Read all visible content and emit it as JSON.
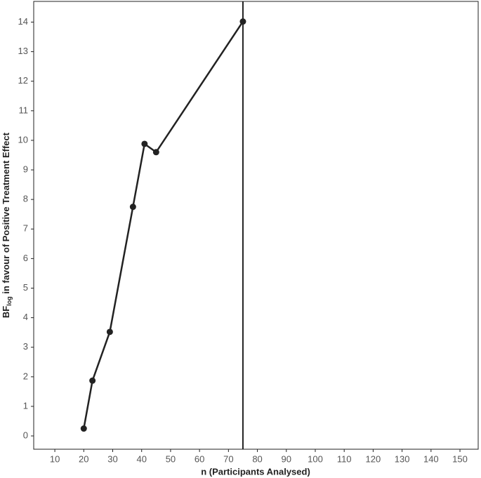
{
  "chart_data": {
    "type": "line",
    "x": [
      20,
      23,
      29,
      37,
      41,
      45,
      75
    ],
    "series": [
      {
        "color": "#222222",
        "values": [
          0.25,
          1.87,
          3.52,
          7.75,
          9.88,
          9.6,
          14.02
        ]
      }
    ],
    "vline": 75,
    "xlim": [
      2.7,
      156.3
    ],
    "xticks": [
      10,
      20,
      30,
      40,
      50,
      60,
      70,
      80,
      90,
      100,
      110,
      120,
      130,
      140,
      150
    ],
    "ylim": [
      -0.45,
      14.7
    ],
    "yticks": [
      0,
      1,
      2,
      3,
      4,
      5,
      6,
      7,
      8,
      9,
      10,
      11,
      12,
      13,
      14
    ],
    "xlabel": "n (Participants Analysed)",
    "ylabel": [
      "BF",
      "log",
      " in favour of Positive Treatment Effect"
    ]
  }
}
